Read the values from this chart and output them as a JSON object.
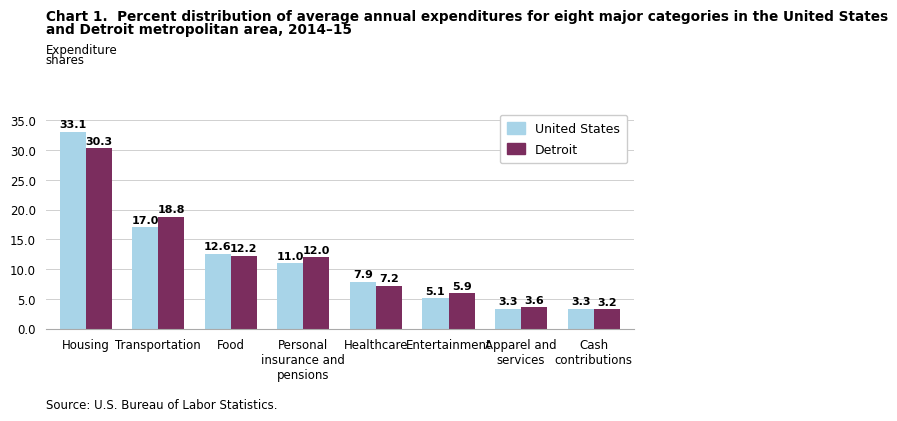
{
  "title_line1": "Chart 1.  Percent distribution of average annual expenditures for eight major categories in the United States",
  "title_line2": "and Detroit metropolitan area, 2014–15",
  "ylabel_line1": "Expenditure",
  "ylabel_line2": "shares",
  "categories": [
    "Housing",
    "Transportation",
    "Food",
    "Personal\ninsurance and\npensions",
    "Healthcare",
    "Entertainment",
    "Apparel and\nservices",
    "Cash\ncontributions"
  ],
  "us_values": [
    33.1,
    17.0,
    12.6,
    11.0,
    7.9,
    5.1,
    3.3,
    3.3
  ],
  "detroit_values": [
    30.3,
    18.8,
    12.2,
    12.0,
    7.2,
    5.9,
    3.6,
    3.2
  ],
  "us_color": "#A8D4E8",
  "detroit_color": "#7B2D5E",
  "ylim": [
    0,
    37
  ],
  "yticks": [
    0.0,
    5.0,
    10.0,
    15.0,
    20.0,
    25.0,
    30.0,
    35.0
  ],
  "legend_labels": [
    "United States",
    "Detroit"
  ],
  "source_text": "Source: U.S. Bureau of Labor Statistics.",
  "bar_width": 0.36,
  "label_fontsize": 8.0,
  "title_fontsize": 9.8,
  "ylabel_fontsize": 8.5,
  "tick_fontsize": 8.5,
  "legend_fontsize": 9.0
}
